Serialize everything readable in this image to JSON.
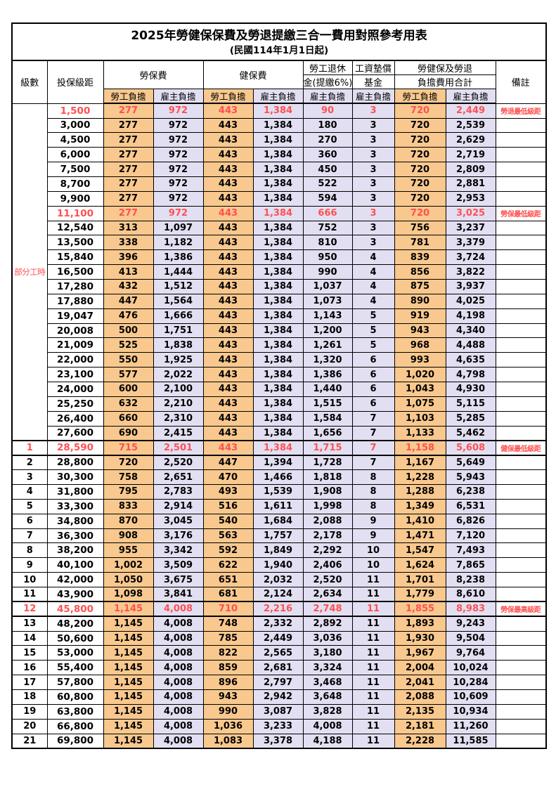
{
  "title": {
    "main": "2025年勞健保保費及勞退提繳三合一費用對照參考用表",
    "sub": "(民國114年1月1日起)"
  },
  "header": {
    "level": "級數",
    "bracket": "投保級距",
    "labor_group": "勞保費",
    "health_group": "健保費",
    "pension_line1": "勞工退休",
    "pension_line2": "金(提繳6%)",
    "fund_line1": "工資墊償",
    "fund_line2": "基金",
    "total_line1": "勞健保及勞退",
    "total_line2": "負擔費用合計",
    "remark": "備註",
    "employee": "勞工負擔",
    "employer": "雇主負擔"
  },
  "colors": {
    "employee_bg": "#F8C88E",
    "employer_bg": "#E2DFF2",
    "highlight_text": "#FF5050",
    "border": "#000000"
  },
  "part_time_label": "部分工時",
  "part_time_rowspan": 23,
  "rows": [
    {
      "level": null,
      "first": true,
      "bracket": "1,500",
      "labor_emp": "277",
      "labor_er": "972",
      "health_emp": "443",
      "health_er": "1,384",
      "pension_er": "90",
      "fund_er": "3",
      "total_emp": "720",
      "total_er": "2,449",
      "remark": "勞退最低級距",
      "highlight": true
    },
    {
      "level": null,
      "bracket": "3,000",
      "labor_emp": "277",
      "labor_er": "972",
      "health_emp": "443",
      "health_er": "1,384",
      "pension_er": "180",
      "fund_er": "3",
      "total_emp": "720",
      "total_er": "2,539",
      "remark": ""
    },
    {
      "level": null,
      "bracket": "4,500",
      "labor_emp": "277",
      "labor_er": "972",
      "health_emp": "443",
      "health_er": "1,384",
      "pension_er": "270",
      "fund_er": "3",
      "total_emp": "720",
      "total_er": "2,629",
      "remark": ""
    },
    {
      "level": null,
      "bracket": "6,000",
      "labor_emp": "277",
      "labor_er": "972",
      "health_emp": "443",
      "health_er": "1,384",
      "pension_er": "360",
      "fund_er": "3",
      "total_emp": "720",
      "total_er": "2,719",
      "remark": ""
    },
    {
      "level": null,
      "bracket": "7,500",
      "labor_emp": "277",
      "labor_er": "972",
      "health_emp": "443",
      "health_er": "1,384",
      "pension_er": "450",
      "fund_er": "3",
      "total_emp": "720",
      "total_er": "2,809",
      "remark": ""
    },
    {
      "level": null,
      "bracket": "8,700",
      "labor_emp": "277",
      "labor_er": "972",
      "health_emp": "443",
      "health_er": "1,384",
      "pension_er": "522",
      "fund_er": "3",
      "total_emp": "720",
      "total_er": "2,881",
      "remark": ""
    },
    {
      "level": null,
      "bracket": "9,900",
      "labor_emp": "277",
      "labor_er": "972",
      "health_emp": "443",
      "health_er": "1,384",
      "pension_er": "594",
      "fund_er": "3",
      "total_emp": "720",
      "total_er": "2,953",
      "remark": ""
    },
    {
      "level": null,
      "bracket": "11,100",
      "labor_emp": "277",
      "labor_er": "972",
      "health_emp": "443",
      "health_er": "1,384",
      "pension_er": "666",
      "fund_er": "3",
      "total_emp": "720",
      "total_er": "3,025",
      "remark": "勞保最低級距",
      "highlight": true
    },
    {
      "level": null,
      "bracket": "12,540",
      "labor_emp": "313",
      "labor_er": "1,097",
      "health_emp": "443",
      "health_er": "1,384",
      "pension_er": "752",
      "fund_er": "3",
      "total_emp": "756",
      "total_er": "3,237",
      "remark": ""
    },
    {
      "level": null,
      "bracket": "13,500",
      "labor_emp": "338",
      "labor_er": "1,182",
      "health_emp": "443",
      "health_er": "1,384",
      "pension_er": "810",
      "fund_er": "3",
      "total_emp": "781",
      "total_er": "3,379",
      "remark": ""
    },
    {
      "level": null,
      "bracket": "15,840",
      "labor_emp": "396",
      "labor_er": "1,386",
      "health_emp": "443",
      "health_er": "1,384",
      "pension_er": "950",
      "fund_er": "4",
      "total_emp": "839",
      "total_er": "3,724",
      "remark": ""
    },
    {
      "level": null,
      "bracket": "16,500",
      "labor_emp": "413",
      "labor_er": "1,444",
      "health_emp": "443",
      "health_er": "1,384",
      "pension_er": "990",
      "fund_er": "4",
      "total_emp": "856",
      "total_er": "3,822",
      "remark": ""
    },
    {
      "level": null,
      "bracket": "17,280",
      "labor_emp": "432",
      "labor_er": "1,512",
      "health_emp": "443",
      "health_er": "1,384",
      "pension_er": "1,037",
      "fund_er": "4",
      "total_emp": "875",
      "total_er": "3,937",
      "remark": ""
    },
    {
      "level": null,
      "bracket": "17,880",
      "labor_emp": "447",
      "labor_er": "1,564",
      "health_emp": "443",
      "health_er": "1,384",
      "pension_er": "1,073",
      "fund_er": "4",
      "total_emp": "890",
      "total_er": "4,025",
      "remark": ""
    },
    {
      "level": null,
      "bracket": "19,047",
      "labor_emp": "476",
      "labor_er": "1,666",
      "health_emp": "443",
      "health_er": "1,384",
      "pension_er": "1,143",
      "fund_er": "5",
      "total_emp": "919",
      "total_er": "4,198",
      "remark": ""
    },
    {
      "level": null,
      "bracket": "20,008",
      "labor_emp": "500",
      "labor_er": "1,751",
      "health_emp": "443",
      "health_er": "1,384",
      "pension_er": "1,200",
      "fund_er": "5",
      "total_emp": "943",
      "total_er": "4,340",
      "remark": ""
    },
    {
      "level": null,
      "bracket": "21,009",
      "labor_emp": "525",
      "labor_er": "1,838",
      "health_emp": "443",
      "health_er": "1,384",
      "pension_er": "1,261",
      "fund_er": "5",
      "total_emp": "968",
      "total_er": "4,488",
      "remark": ""
    },
    {
      "level": null,
      "bracket": "22,000",
      "labor_emp": "550",
      "labor_er": "1,925",
      "health_emp": "443",
      "health_er": "1,384",
      "pension_er": "1,320",
      "fund_er": "6",
      "total_emp": "993",
      "total_er": "4,635",
      "remark": ""
    },
    {
      "level": null,
      "bracket": "23,100",
      "labor_emp": "577",
      "labor_er": "2,022",
      "health_emp": "443",
      "health_er": "1,384",
      "pension_er": "1,386",
      "fund_er": "6",
      "total_emp": "1,020",
      "total_er": "4,798",
      "remark": ""
    },
    {
      "level": null,
      "bracket": "24,000",
      "labor_emp": "600",
      "labor_er": "2,100",
      "health_emp": "443",
      "health_er": "1,384",
      "pension_er": "1,440",
      "fund_er": "6",
      "total_emp": "1,043",
      "total_er": "4,930",
      "remark": ""
    },
    {
      "level": null,
      "bracket": "25,250",
      "labor_emp": "632",
      "labor_er": "2,210",
      "health_emp": "443",
      "health_er": "1,384",
      "pension_er": "1,515",
      "fund_er": "6",
      "total_emp": "1,075",
      "total_er": "5,115",
      "remark": ""
    },
    {
      "level": null,
      "bracket": "26,400",
      "labor_emp": "660",
      "labor_er": "2,310",
      "health_emp": "443",
      "health_er": "1,384",
      "pension_er": "1,584",
      "fund_er": "7",
      "total_emp": "1,103",
      "total_er": "5,285",
      "remark": ""
    },
    {
      "level": null,
      "bracket": "27,600",
      "labor_emp": "690",
      "labor_er": "2,415",
      "health_emp": "443",
      "health_er": "1,384",
      "pension_er": "1,656",
      "fund_er": "7",
      "total_emp": "1,133",
      "total_er": "5,462",
      "remark": ""
    },
    {
      "level": "1",
      "bracket": "28,590",
      "labor_emp": "715",
      "labor_er": "2,501",
      "health_emp": "443",
      "health_er": "1,384",
      "pension_er": "1,715",
      "fund_er": "7",
      "total_emp": "1,158",
      "total_er": "5,608",
      "remark": "健保最低級距",
      "highlight": true,
      "thick": true
    },
    {
      "level": "2",
      "bracket": "28,800",
      "labor_emp": "720",
      "labor_er": "2,520",
      "health_emp": "447",
      "health_er": "1,394",
      "pension_er": "1,728",
      "fund_er": "7",
      "total_emp": "1,167",
      "total_er": "5,649",
      "remark": ""
    },
    {
      "level": "3",
      "bracket": "30,300",
      "labor_emp": "758",
      "labor_er": "2,651",
      "health_emp": "470",
      "health_er": "1,466",
      "pension_er": "1,818",
      "fund_er": "8",
      "total_emp": "1,228",
      "total_er": "5,943",
      "remark": ""
    },
    {
      "level": "4",
      "bracket": "31,800",
      "labor_emp": "795",
      "labor_er": "2,783",
      "health_emp": "493",
      "health_er": "1,539",
      "pension_er": "1,908",
      "fund_er": "8",
      "total_emp": "1,288",
      "total_er": "6,238",
      "remark": ""
    },
    {
      "level": "5",
      "bracket": "33,300",
      "labor_emp": "833",
      "labor_er": "2,914",
      "health_emp": "516",
      "health_er": "1,611",
      "pension_er": "1,998",
      "fund_er": "8",
      "total_emp": "1,349",
      "total_er": "6,531",
      "remark": ""
    },
    {
      "level": "6",
      "bracket": "34,800",
      "labor_emp": "870",
      "labor_er": "3,045",
      "health_emp": "540",
      "health_er": "1,684",
      "pension_er": "2,088",
      "fund_er": "9",
      "total_emp": "1,410",
      "total_er": "6,826",
      "remark": ""
    },
    {
      "level": "7",
      "bracket": "36,300",
      "labor_emp": "908",
      "labor_er": "3,176",
      "health_emp": "563",
      "health_er": "1,757",
      "pension_er": "2,178",
      "fund_er": "9",
      "total_emp": "1,471",
      "total_er": "7,120",
      "remark": ""
    },
    {
      "level": "8",
      "bracket": "38,200",
      "labor_emp": "955",
      "labor_er": "3,342",
      "health_emp": "592",
      "health_er": "1,849",
      "pension_er": "2,292",
      "fund_er": "10",
      "total_emp": "1,547",
      "total_er": "7,493",
      "remark": ""
    },
    {
      "level": "9",
      "bracket": "40,100",
      "labor_emp": "1,002",
      "labor_er": "3,509",
      "health_emp": "622",
      "health_er": "1,940",
      "pension_er": "2,406",
      "fund_er": "10",
      "total_emp": "1,624",
      "total_er": "7,865",
      "remark": ""
    },
    {
      "level": "10",
      "bracket": "42,000",
      "labor_emp": "1,050",
      "labor_er": "3,675",
      "health_emp": "651",
      "health_er": "2,032",
      "pension_er": "2,520",
      "fund_er": "11",
      "total_emp": "1,701",
      "total_er": "8,238",
      "remark": ""
    },
    {
      "level": "11",
      "bracket": "43,900",
      "labor_emp": "1,098",
      "labor_er": "3,841",
      "health_emp": "681",
      "health_er": "2,124",
      "pension_er": "2,634",
      "fund_er": "11",
      "total_emp": "1,779",
      "total_er": "8,610",
      "remark": ""
    },
    {
      "level": "12",
      "bracket": "45,800",
      "labor_emp": "1,145",
      "labor_er": "4,008",
      "health_emp": "710",
      "health_er": "2,216",
      "pension_er": "2,748",
      "fund_er": "11",
      "total_emp": "1,855",
      "total_er": "8,983",
      "remark": "勞保最高級距",
      "highlight": true,
      "thick": true
    },
    {
      "level": "13",
      "bracket": "48,200",
      "labor_emp": "1,145",
      "labor_er": "4,008",
      "health_emp": "748",
      "health_er": "2,332",
      "pension_er": "2,892",
      "fund_er": "11",
      "total_emp": "1,893",
      "total_er": "9,243",
      "remark": ""
    },
    {
      "level": "14",
      "bracket": "50,600",
      "labor_emp": "1,145",
      "labor_er": "4,008",
      "health_emp": "785",
      "health_er": "2,449",
      "pension_er": "3,036",
      "fund_er": "11",
      "total_emp": "1,930",
      "total_er": "9,504",
      "remark": ""
    },
    {
      "level": "15",
      "bracket": "53,000",
      "labor_emp": "1,145",
      "labor_er": "4,008",
      "health_emp": "822",
      "health_er": "2,565",
      "pension_er": "3,180",
      "fund_er": "11",
      "total_emp": "1,967",
      "total_er": "9,764",
      "remark": ""
    },
    {
      "level": "16",
      "bracket": "55,400",
      "labor_emp": "1,145",
      "labor_er": "4,008",
      "health_emp": "859",
      "health_er": "2,681",
      "pension_er": "3,324",
      "fund_er": "11",
      "total_emp": "2,004",
      "total_er": "10,024",
      "remark": ""
    },
    {
      "level": "17",
      "bracket": "57,800",
      "labor_emp": "1,145",
      "labor_er": "4,008",
      "health_emp": "896",
      "health_er": "2,797",
      "pension_er": "3,468",
      "fund_er": "11",
      "total_emp": "2,041",
      "total_er": "10,284",
      "remark": ""
    },
    {
      "level": "18",
      "bracket": "60,800",
      "labor_emp": "1,145",
      "labor_er": "4,008",
      "health_emp": "943",
      "health_er": "2,942",
      "pension_er": "3,648",
      "fund_er": "11",
      "total_emp": "2,088",
      "total_er": "10,609",
      "remark": ""
    },
    {
      "level": "19",
      "bracket": "63,800",
      "labor_emp": "1,145",
      "labor_er": "4,008",
      "health_emp": "990",
      "health_er": "3,087",
      "pension_er": "3,828",
      "fund_er": "11",
      "total_emp": "2,135",
      "total_er": "10,934",
      "remark": ""
    },
    {
      "level": "20",
      "bracket": "66,800",
      "labor_emp": "1,145",
      "labor_er": "4,008",
      "health_emp": "1,036",
      "health_er": "3,233",
      "pension_er": "4,008",
      "fund_er": "11",
      "total_emp": "2,181",
      "total_er": "11,260",
      "remark": ""
    },
    {
      "level": "21",
      "bracket": "69,800",
      "labor_emp": "1,145",
      "labor_er": "4,008",
      "health_emp": "1,083",
      "health_er": "3,378",
      "pension_er": "4,188",
      "fund_er": "11",
      "total_emp": "2,228",
      "total_er": "11,585",
      "remark": ""
    }
  ]
}
